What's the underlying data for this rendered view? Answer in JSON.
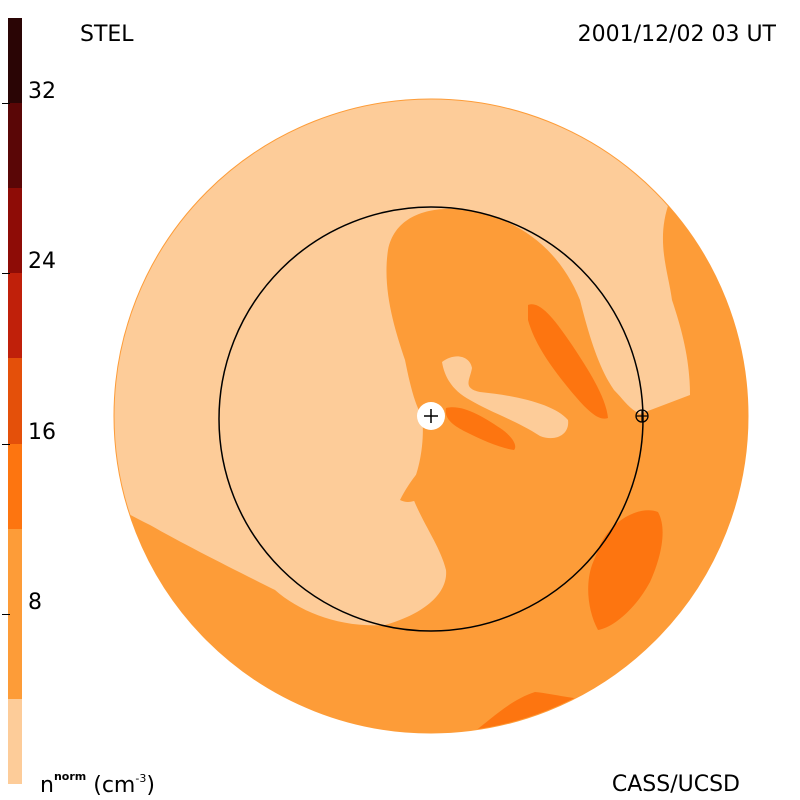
{
  "header": {
    "observatory": "STEL",
    "timestamp": "2001/12/02 03 UT",
    "credit": "CASS/UCSD"
  },
  "colorbar": {
    "label_base": "n",
    "label_sup": "norm",
    "label_unit_open": "(cm",
    "label_unit_exp": "-3",
    "label_unit_close": ")",
    "ticks": [
      {
        "value": 8,
        "text": "8"
      },
      {
        "value": 16,
        "text": "16"
      },
      {
        "value": 24,
        "text": "24"
      },
      {
        "value": 32,
        "text": "32"
      }
    ],
    "range": [
      0,
      36
    ],
    "levels": [
      {
        "from": 0,
        "to": 4,
        "color": "#fdcc99"
      },
      {
        "from": 4,
        "to": 12,
        "color": "#fd9c38"
      },
      {
        "from": 12,
        "to": 16,
        "color": "#fd7510"
      },
      {
        "from": 16,
        "to": 20,
        "color": "#e4500a"
      },
      {
        "from": 20,
        "to": 24,
        "color": "#c0200a"
      },
      {
        "from": 24,
        "to": 28,
        "color": "#8e0c06"
      },
      {
        "from": 28,
        "to": 32,
        "color": "#5a0606"
      },
      {
        "from": 32,
        "to": 36,
        "color": "#2a0505"
      }
    ]
  },
  "colors": {
    "low_density": "#fdcc99",
    "mid_density": "#fd9c38",
    "high_density": "#fd7510",
    "orbit_line": "#000000"
  },
  "markers": [
    {
      "name": "sun",
      "symbol": "+"
    },
    {
      "name": "earth",
      "symbol": "⊕"
    }
  ]
}
